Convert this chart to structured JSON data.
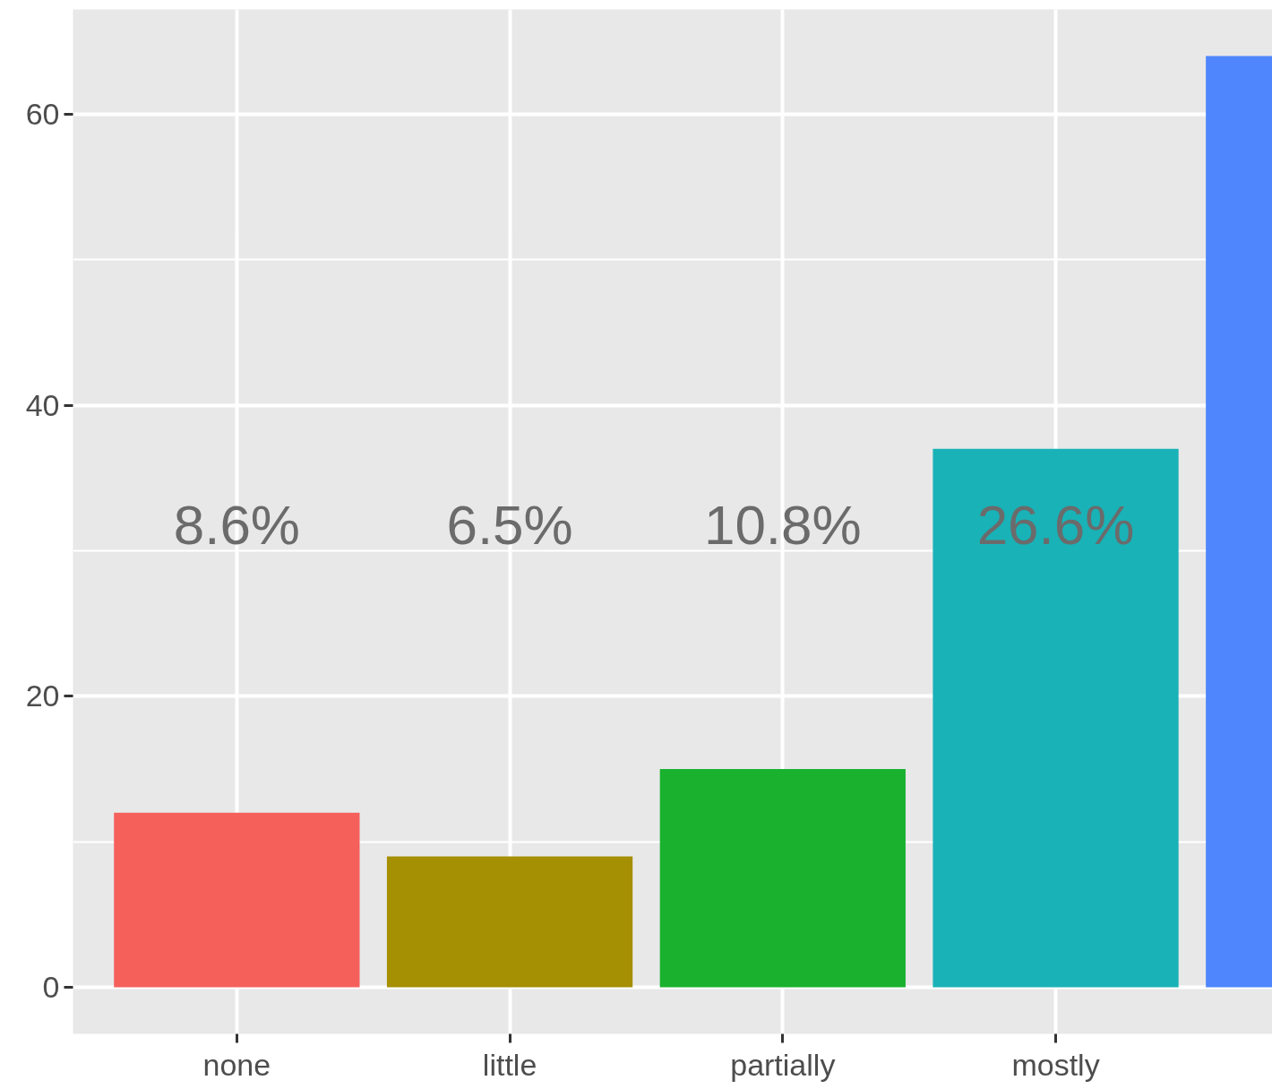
{
  "chart_data": {
    "type": "bar",
    "categories": [
      "none",
      "little",
      "partially",
      "mostly",
      null
    ],
    "values": [
      12,
      9,
      15,
      37,
      64
    ],
    "colors": [
      "#f5605b",
      "#a58f02",
      "#1ab12f",
      "#19b2b7",
      "#4f86fe"
    ],
    "annotations": [
      "8.6%",
      "6.5%",
      "10.8%",
      "26.6%"
    ],
    "ylim": [
      -3.2,
      67.2
    ],
    "yticks": [
      0,
      20,
      40,
      60
    ],
    "grid": true
  }
}
